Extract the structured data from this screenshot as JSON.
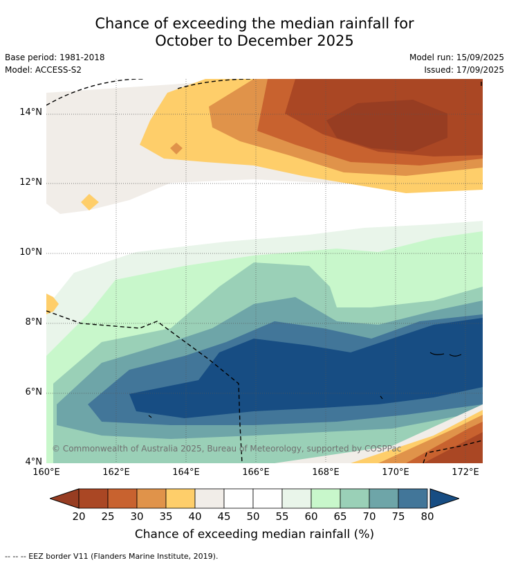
{
  "title_line1": "Chance of exceeding the median rainfall for",
  "title_line2": "October to December 2025",
  "base_period": "Base period: 1981-2018",
  "model": "Model: ACCESS-S2",
  "model_run": "Model run: 15/09/2025",
  "issued": "Issued: 17/09/2025",
  "copyright": "© Commonwealth of Australia 2025, Bureau of Meteorology, supported by COSPPac",
  "footnote": "-- -- -- EEZ border V11 (Flanders Marine Institute, 2019).",
  "y_ticks": [
    "14°N",
    "12°N",
    "10°N",
    "8°N",
    "6°N",
    "4°N"
  ],
  "x_ticks": [
    "160°E",
    "162°E",
    "164°E",
    "166°E",
    "168°E",
    "170°E",
    "172°E"
  ],
  "colorbar": {
    "title": "Chance of exceeding median rainfall (%)",
    "ticks": [
      "20",
      "25",
      "30",
      "35",
      "40",
      "45",
      "50",
      "55",
      "60",
      "65",
      "70",
      "75",
      "80"
    ],
    "colors": [
      "#aa4724",
      "#c8622f",
      "#e0934a",
      "#fece6a",
      "#f1ede8",
      "#ffffff",
      "#ffffff",
      "#e9f5ea",
      "#c8f7cb",
      "#9ad0b7",
      "#6ea5a8",
      "#427699"
    ],
    "under_color": "#973d22",
    "over_color": "#174d83"
  },
  "map": {
    "x_range_deg_e": [
      160,
      172.5
    ],
    "y_range_deg_n": [
      4,
      15
    ]
  }
}
